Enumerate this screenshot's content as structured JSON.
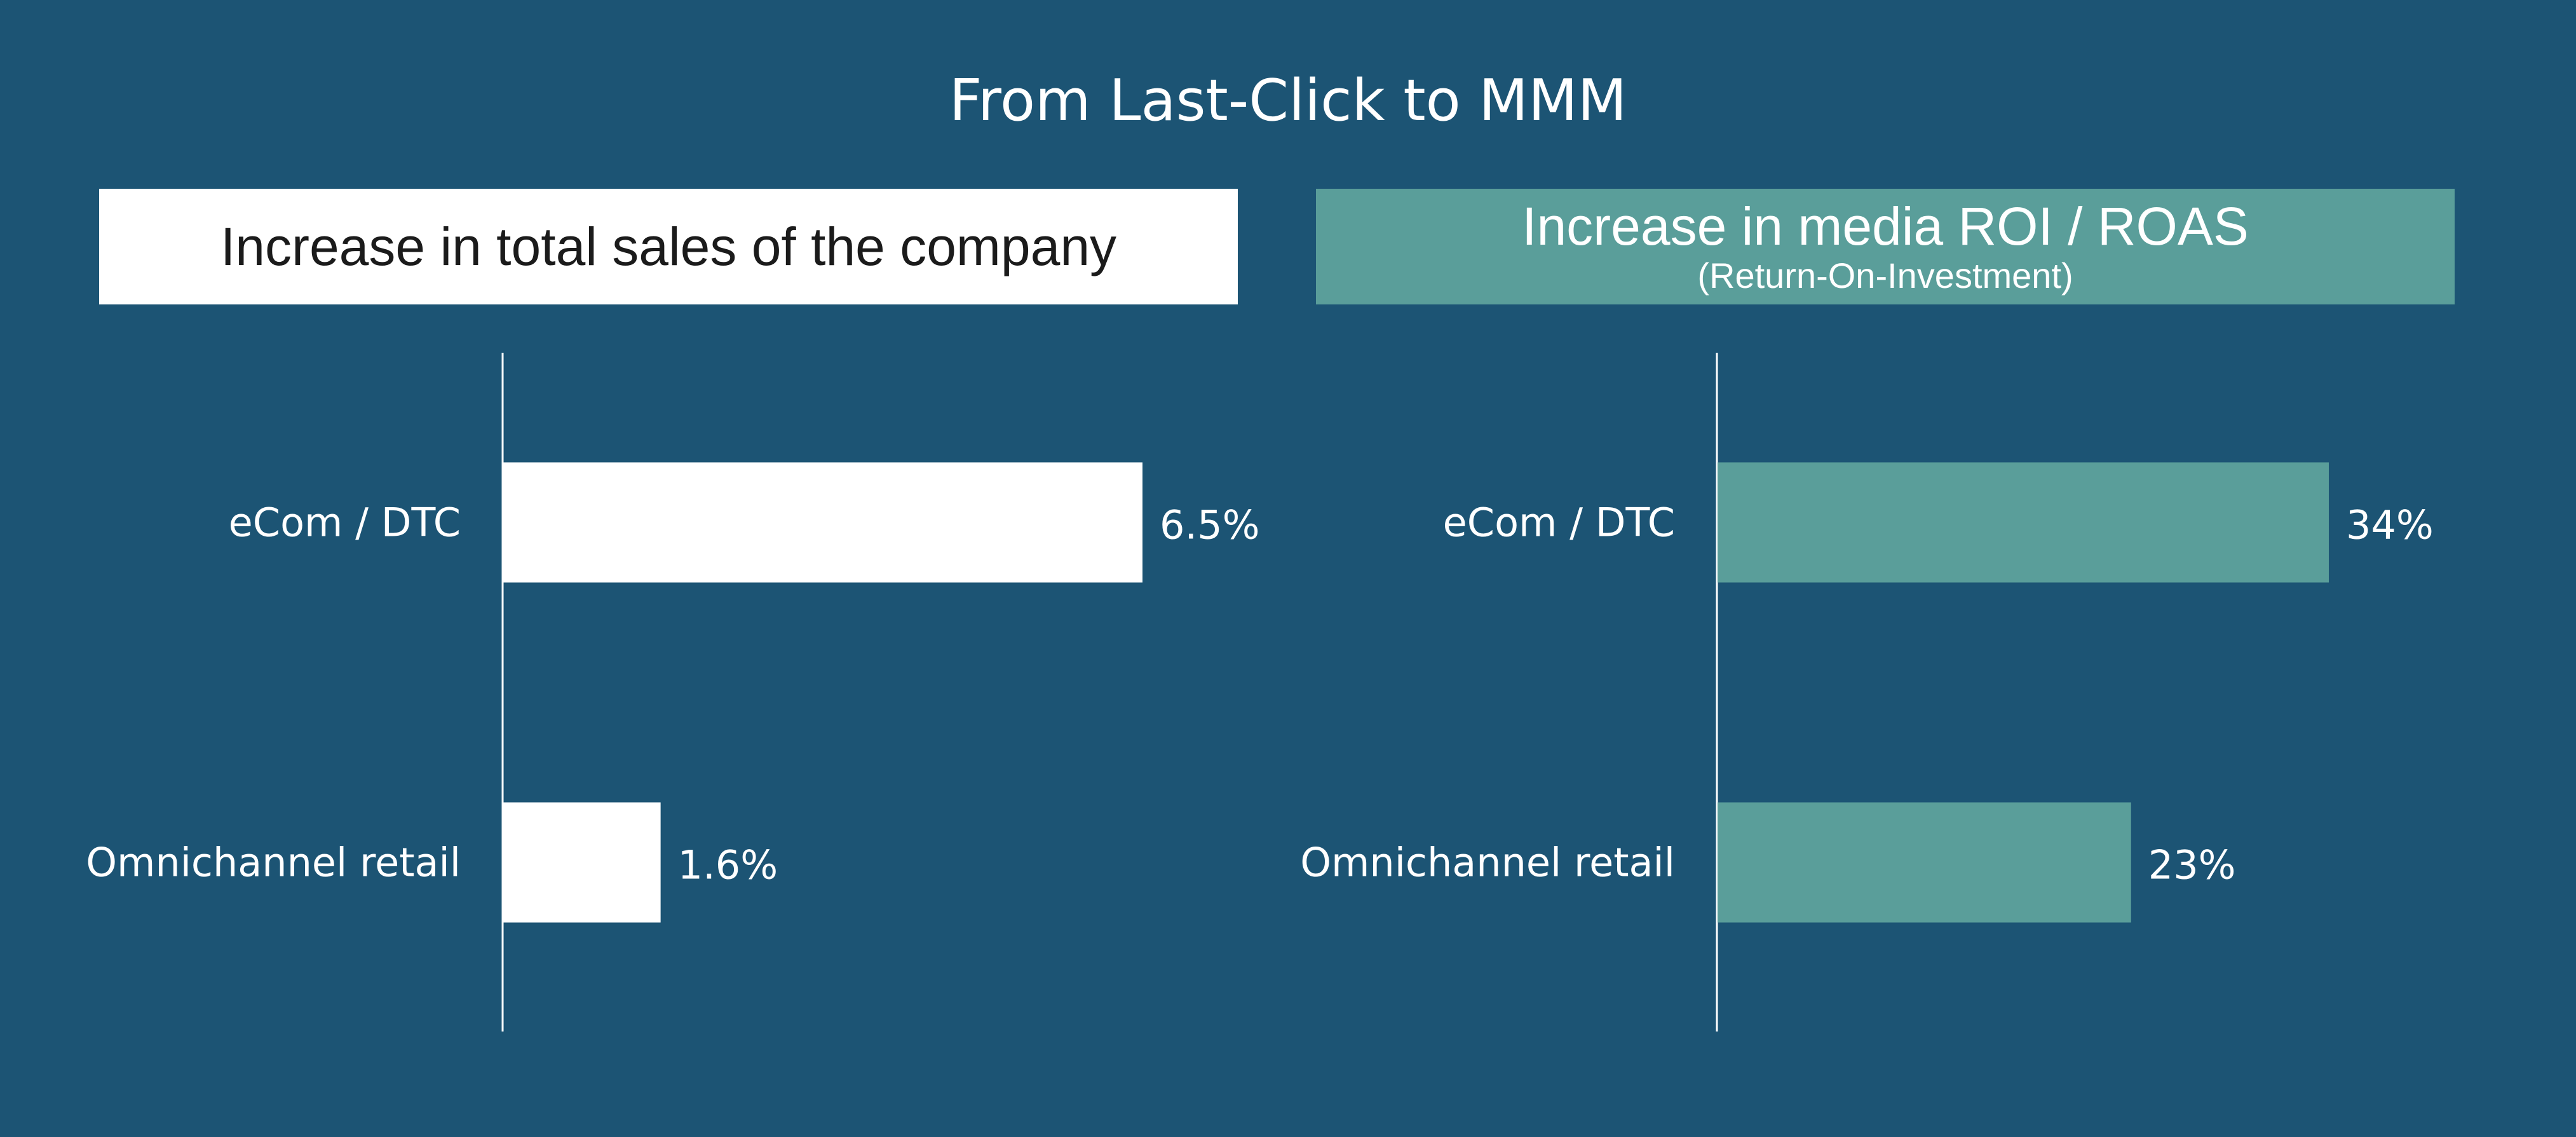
{
  "title": "From Last-Click to MMM",
  "colors": {
    "background": "#1c5474",
    "left_bar": "#ffffff",
    "right_bar": "#5a9e9a",
    "axis": "#ffffff"
  },
  "chart_data": [
    {
      "type": "bar",
      "orientation": "horizontal",
      "title": "Increase in total sales of the company",
      "subtitle": "",
      "categories": [
        "eCom / DTC",
        "Omnichannel retail"
      ],
      "values": [
        6.5,
        1.6
      ],
      "value_labels": [
        "6.5%",
        "1.6%"
      ],
      "unit": "%",
      "xlim": [
        0,
        6.5
      ],
      "grid": false,
      "color": "#ffffff"
    },
    {
      "type": "bar",
      "orientation": "horizontal",
      "title": "Increase in media ROI / ROAS",
      "subtitle": "(Return-On-Investment)",
      "categories": [
        "eCom / DTC",
        "Omnichannel retail"
      ],
      "values": [
        34,
        23
      ],
      "value_labels": [
        "34%",
        "23%"
      ],
      "unit": "%",
      "xlim": [
        0,
        34
      ],
      "grid": false,
      "color": "#5a9e9a"
    }
  ]
}
